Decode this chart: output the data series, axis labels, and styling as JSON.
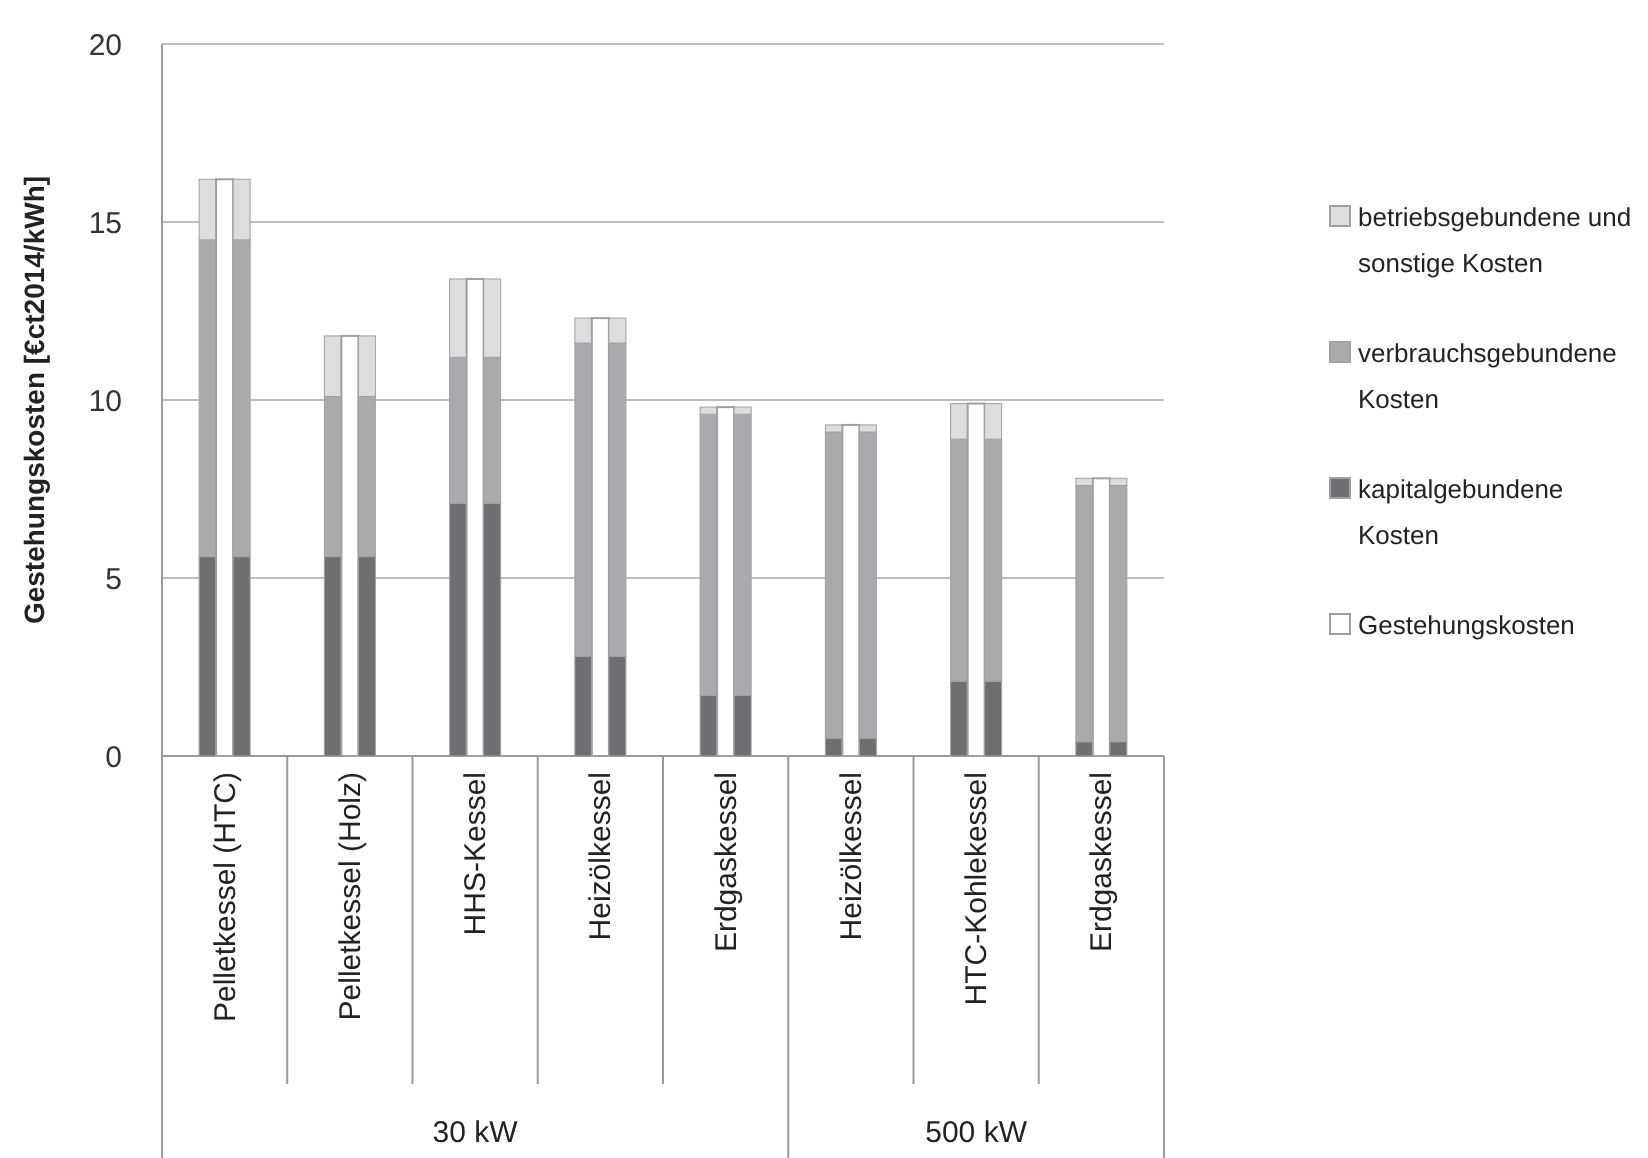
{
  "chart_data": [
    {
      "type": "bar",
      "ylabel": "Gestehungskosten [€ct2014/kWh]",
      "categories": [
        "Pelletkessel (HTC)",
        "Pelletkessel (Holz)",
        "HHS-Kessel",
        "Heizölkessel",
        "Erdgaskessel",
        "Heizölkessel",
        "HTC-Kohlekessel",
        "Erdgaskessel"
      ],
      "stacked": true,
      "ylim": [
        0,
        20
      ],
      "yticks": [
        0,
        5,
        10,
        15,
        20
      ],
      "grid": "y",
      "legend": "right",
      "annotations": [
        "30 kW",
        "500 kW"
      ],
      "series": [
        {
          "name": "kapitalgebundene Kosten",
          "color": "#6e6f72",
          "values": [
            5.6,
            5.6,
            7.1,
            2.8,
            1.7,
            0.5,
            2.1,
            0.4
          ]
        },
        {
          "name": "verbrauchsgebundene Kosten",
          "color": "#a9aaad",
          "values": [
            8.9,
            4.5,
            4.1,
            8.8,
            7.9,
            8.6,
            6.8,
            7.2
          ]
        },
        {
          "name": "betriebsgebundene und sonstige Kosten",
          "color": "#dcdddf",
          "values": [
            1.7,
            1.7,
            2.2,
            0.7,
            0.2,
            0.2,
            1.0,
            0.2
          ]
        }
      ]
    },
    {
      "type": "bar",
      "categories": [
        null,
        null,
        null,
        null,
        null,
        null,
        null,
        null
      ],
      "ylim": [
        0,
        20
      ],
      "tick_labels": false,
      "legend": "right",
      "series": [
        {
          "name": "Gestehungskosten",
          "color": "#ffffff",
          "values": [
            16.2,
            11.8,
            13.4,
            12.3,
            9.8,
            9.3,
            9.9,
            7.8
          ]
        }
      ]
    },
    {
      "type": "bar",
      "categories": [
        null,
        null,
        null,
        null,
        null,
        null,
        null,
        null
      ],
      "stacked": true,
      "ylim": [
        0,
        20
      ],
      "tick_labels": false,
      "series": [
        {
          "color": "#6e6f72",
          "values": [
            5.6,
            5.6,
            7.1,
            2.8,
            1.7,
            0.5,
            2.1,
            0.4
          ]
        },
        {
          "color": "#a9aaad",
          "values": [
            8.9,
            4.5,
            4.1,
            8.8,
            7.9,
            8.6,
            6.8,
            7.2
          ]
        },
        {
          "color": "#dcdddf",
          "values": [
            1.7,
            1.7,
            2.2,
            0.7,
            0.2,
            0.2,
            1.0,
            0.2
          ]
        }
      ]
    }
  ]
}
